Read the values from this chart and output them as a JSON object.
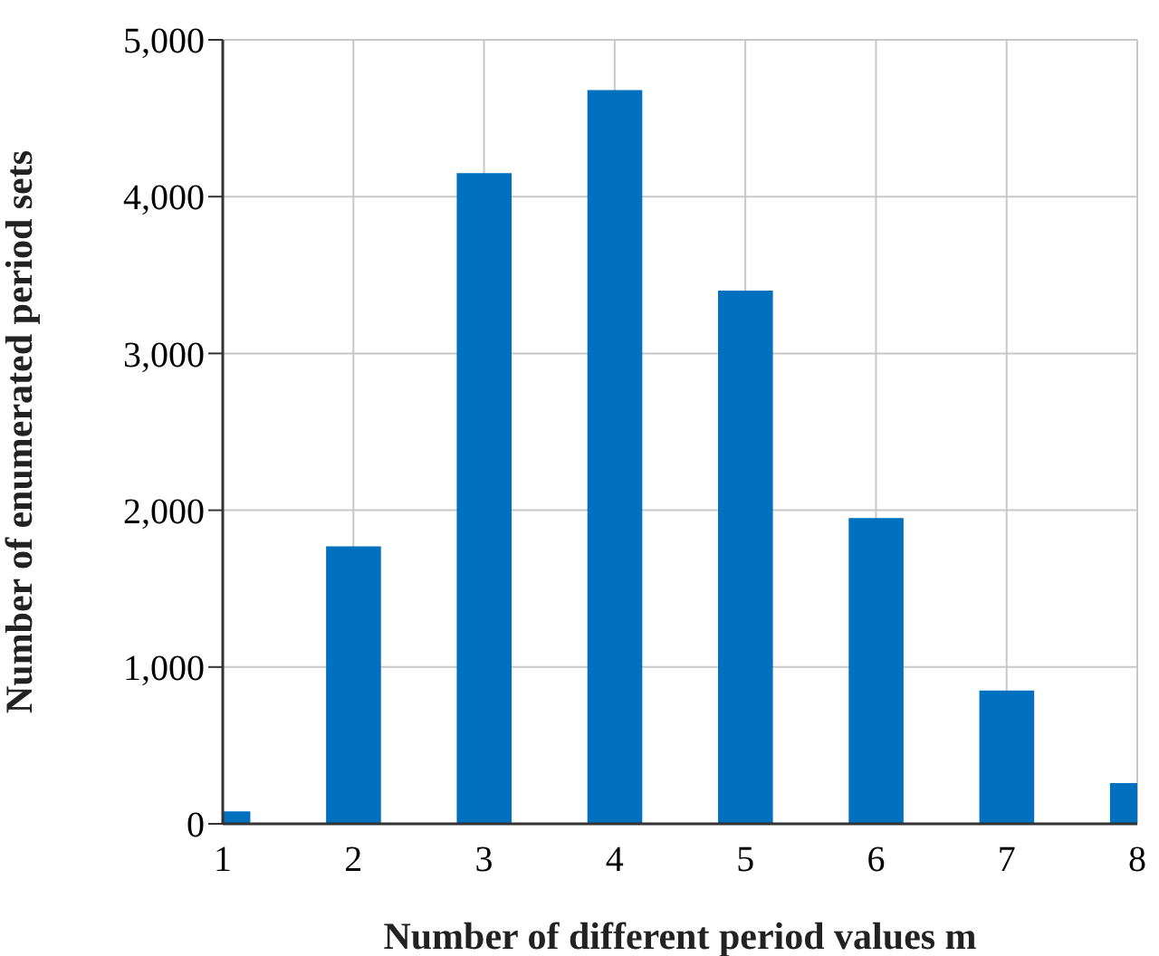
{
  "chart_data": {
    "type": "bar",
    "xlabel": "Number of different period values m",
    "ylabel": "Number of enumerated period sets",
    "x": [
      1,
      2,
      3,
      4,
      5,
      6,
      7,
      8
    ],
    "values": [
      80,
      1770,
      4150,
      4680,
      3400,
      1950,
      850,
      260
    ],
    "color": "#0070bf",
    "xlim": [
      1,
      8
    ],
    "xticks": [
      1,
      2,
      3,
      4,
      5,
      6,
      7,
      8
    ],
    "ylim": [
      0,
      5000
    ],
    "yticks": [
      {
        "value": 0,
        "label": "0"
      },
      {
        "value": 1000,
        "label": "1,000"
      },
      {
        "value": 2000,
        "label": "2,000"
      },
      {
        "value": 3000,
        "label": "3,000"
      },
      {
        "value": 4000,
        "label": "4,000"
      },
      {
        "value": 5000,
        "label": "5,000"
      }
    ],
    "grid": true
  }
}
